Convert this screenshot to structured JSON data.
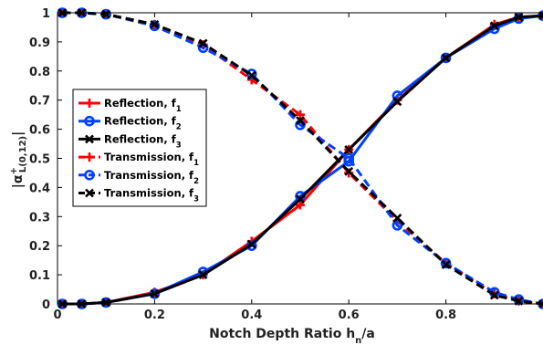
{
  "chart_data": {
    "type": "line",
    "xlabel_main": "Notch Depth Ratio h",
    "xlabel_sub": "n",
    "xlabel_tail": "/a",
    "ylabel_main": "|α",
    "ylabel_sup": "+",
    "ylabel_sub": "L(0,12)",
    "ylabel_tail": "|",
    "xlim": [
      0,
      1
    ],
    "ylim": [
      0,
      1
    ],
    "xticks": [
      0,
      0.2,
      0.4,
      0.6,
      0.8
    ],
    "xtick_labels": [
      "0",
      "0.2",
      "0.4",
      "0.6",
      "0.8"
    ],
    "yticks": [
      0,
      0.1,
      0.2,
      0.3,
      0.4,
      0.5,
      0.6,
      0.7,
      0.8,
      0.9,
      1
    ],
    "ytick_labels": [
      "0",
      "0.1",
      "0.2",
      "0.3",
      "0.4",
      "0.5",
      "0.6",
      "0.7",
      "0.8",
      "0.9",
      "1"
    ],
    "grid": false,
    "legend_position": "left",
    "series": [
      {
        "name": "Reflection, f",
        "sub": "1",
        "color": "#ff0000",
        "dash": "solid",
        "marker": "plus",
        "x": [
          0.01,
          0.05,
          0.1,
          0.2,
          0.3,
          0.4,
          0.5,
          0.6,
          0.7,
          0.8,
          0.9,
          0.95,
          1.0
        ],
        "y": [
          0.0,
          0.0,
          0.005,
          0.04,
          0.1,
          0.215,
          0.34,
          0.53,
          0.7,
          0.845,
          0.96,
          0.985,
          0.99
        ]
      },
      {
        "name": "Reflection, f",
        "sub": "2",
        "color": "#0040ff",
        "dash": "solid",
        "marker": "circle",
        "x": [
          0.01,
          0.05,
          0.1,
          0.2,
          0.3,
          0.4,
          0.5,
          0.6,
          0.7,
          0.8,
          0.9,
          0.95,
          1.0
        ],
        "y": [
          0.0,
          0.0,
          0.005,
          0.035,
          0.11,
          0.2,
          0.37,
          0.49,
          0.715,
          0.845,
          0.945,
          0.98,
          0.99
        ]
      },
      {
        "name": "Reflection, f",
        "sub": "3",
        "color": "#000000",
        "dash": "solid",
        "marker": "x",
        "x": [
          0.01,
          0.05,
          0.1,
          0.2,
          0.3,
          0.4,
          0.5,
          0.6,
          0.7,
          0.8,
          0.9,
          0.95,
          1.0
        ],
        "y": [
          0.0,
          0.0,
          0.005,
          0.035,
          0.1,
          0.205,
          0.36,
          0.53,
          0.695,
          0.845,
          0.955,
          0.985,
          0.99
        ]
      },
      {
        "name": "Transmission, f",
        "sub": "1",
        "color": "#ff0000",
        "dash": "dashed",
        "marker": "plus",
        "x": [
          0.01,
          0.05,
          0.1,
          0.2,
          0.3,
          0.4,
          0.5,
          0.6,
          0.7,
          0.8,
          0.9,
          0.95,
          1.0
        ],
        "y": [
          1.0,
          1.0,
          0.995,
          0.96,
          0.89,
          0.77,
          0.65,
          0.45,
          0.285,
          0.14,
          0.035,
          0.01,
          0.0
        ]
      },
      {
        "name": "Transmission, f",
        "sub": "2",
        "color": "#0040ff",
        "dash": "dashed",
        "marker": "circle",
        "x": [
          0.01,
          0.05,
          0.1,
          0.2,
          0.3,
          0.4,
          0.5,
          0.6,
          0.7,
          0.8,
          0.9,
          0.95,
          1.0
        ],
        "y": [
          1.0,
          1.0,
          0.995,
          0.955,
          0.88,
          0.79,
          0.615,
          0.5,
          0.27,
          0.14,
          0.04,
          0.015,
          0.0
        ]
      },
      {
        "name": "Transmission, f",
        "sub": "3",
        "color": "#000000",
        "dash": "dashed",
        "marker": "x",
        "x": [
          0.01,
          0.05,
          0.1,
          0.2,
          0.3,
          0.4,
          0.5,
          0.6,
          0.7,
          0.8,
          0.9,
          0.95,
          1.0
        ],
        "y": [
          1.0,
          1.0,
          0.995,
          0.96,
          0.895,
          0.785,
          0.63,
          0.455,
          0.295,
          0.135,
          0.03,
          0.01,
          0.0
        ]
      }
    ]
  }
}
